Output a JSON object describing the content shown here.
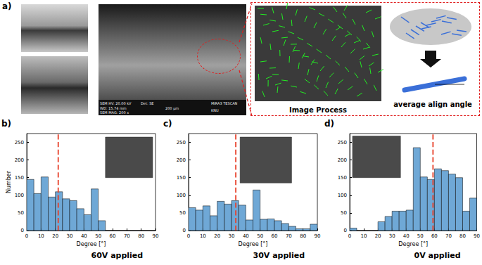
{
  "panel_a": {
    "label": "a)",
    "sem_info": [
      "SEM HV: 20.00 kV",
      "WD: 15.74 mm",
      "SEM MAG: 200 x",
      "Det: SE",
      "200 μm",
      "MIRA3 TESCAN",
      "KNU"
    ],
    "process_label": "Image Process",
    "cartoon_label": "average align angle"
  },
  "chart_data": [
    {
      "type": "histogram",
      "panel_label": "b)",
      "caption": "60V applied",
      "x_label": "Degree [°]",
      "y_label": "Number",
      "bins": [
        0,
        5,
        10,
        15,
        20,
        25,
        30,
        35,
        40,
        45,
        50,
        55,
        60,
        65,
        70,
        75,
        80,
        85,
        90
      ],
      "counts": [
        145,
        105,
        152,
        95,
        110,
        90,
        85,
        62,
        45,
        118,
        28,
        0,
        0,
        0,
        0,
        0,
        0,
        0
      ],
      "mean_angle": 22,
      "color": "#6fa8d6",
      "xlim": [
        0,
        90
      ],
      "xticks": [
        0,
        10,
        20,
        30,
        40,
        50,
        60,
        70,
        80,
        90
      ],
      "ylim": [
        0,
        275
      ],
      "yticks": [
        0,
        50,
        100,
        150,
        200,
        250
      ],
      "grid": false
    },
    {
      "type": "histogram",
      "panel_label": "c)",
      "caption": "30V applied",
      "x_label": "Degree [°]",
      "bins": [
        0,
        5,
        10,
        15,
        20,
        25,
        30,
        35,
        40,
        45,
        50,
        55,
        60,
        65,
        70,
        75,
        80,
        85,
        90
      ],
      "counts": [
        65,
        58,
        70,
        42,
        83,
        75,
        85,
        72,
        30,
        115,
        32,
        33,
        28,
        20,
        12,
        5,
        5,
        18
      ],
      "mean_angle": 33,
      "color": "#6fa8d6",
      "xlim": [
        0,
        90
      ],
      "xticks": [
        0,
        10,
        20,
        30,
        40,
        50,
        60,
        70,
        80,
        90
      ],
      "ylim": [
        0,
        275
      ],
      "yticks": [
        0,
        50,
        100,
        150,
        200,
        250
      ],
      "grid": false
    },
    {
      "type": "histogram",
      "panel_label": "d)",
      "caption": "0V applied",
      "x_label": "Degree [°]",
      "bins": [
        0,
        5,
        10,
        15,
        20,
        25,
        30,
        35,
        40,
        45,
        50,
        55,
        60,
        65,
        70,
        75,
        80,
        85,
        90
      ],
      "counts": [
        7,
        0,
        0,
        0,
        25,
        40,
        55,
        55,
        58,
        235,
        152,
        145,
        175,
        170,
        160,
        150,
        55,
        92
      ],
      "mean_angle": 59,
      "color": "#6fa8d6",
      "xlim": [
        0,
        90
      ],
      "xticks": [
        0,
        10,
        20,
        30,
        40,
        50,
        60,
        70,
        80,
        90
      ],
      "ylim": [
        0,
        275
      ],
      "yticks": [
        0,
        50,
        100,
        150,
        200,
        250
      ],
      "grid": false
    }
  ]
}
